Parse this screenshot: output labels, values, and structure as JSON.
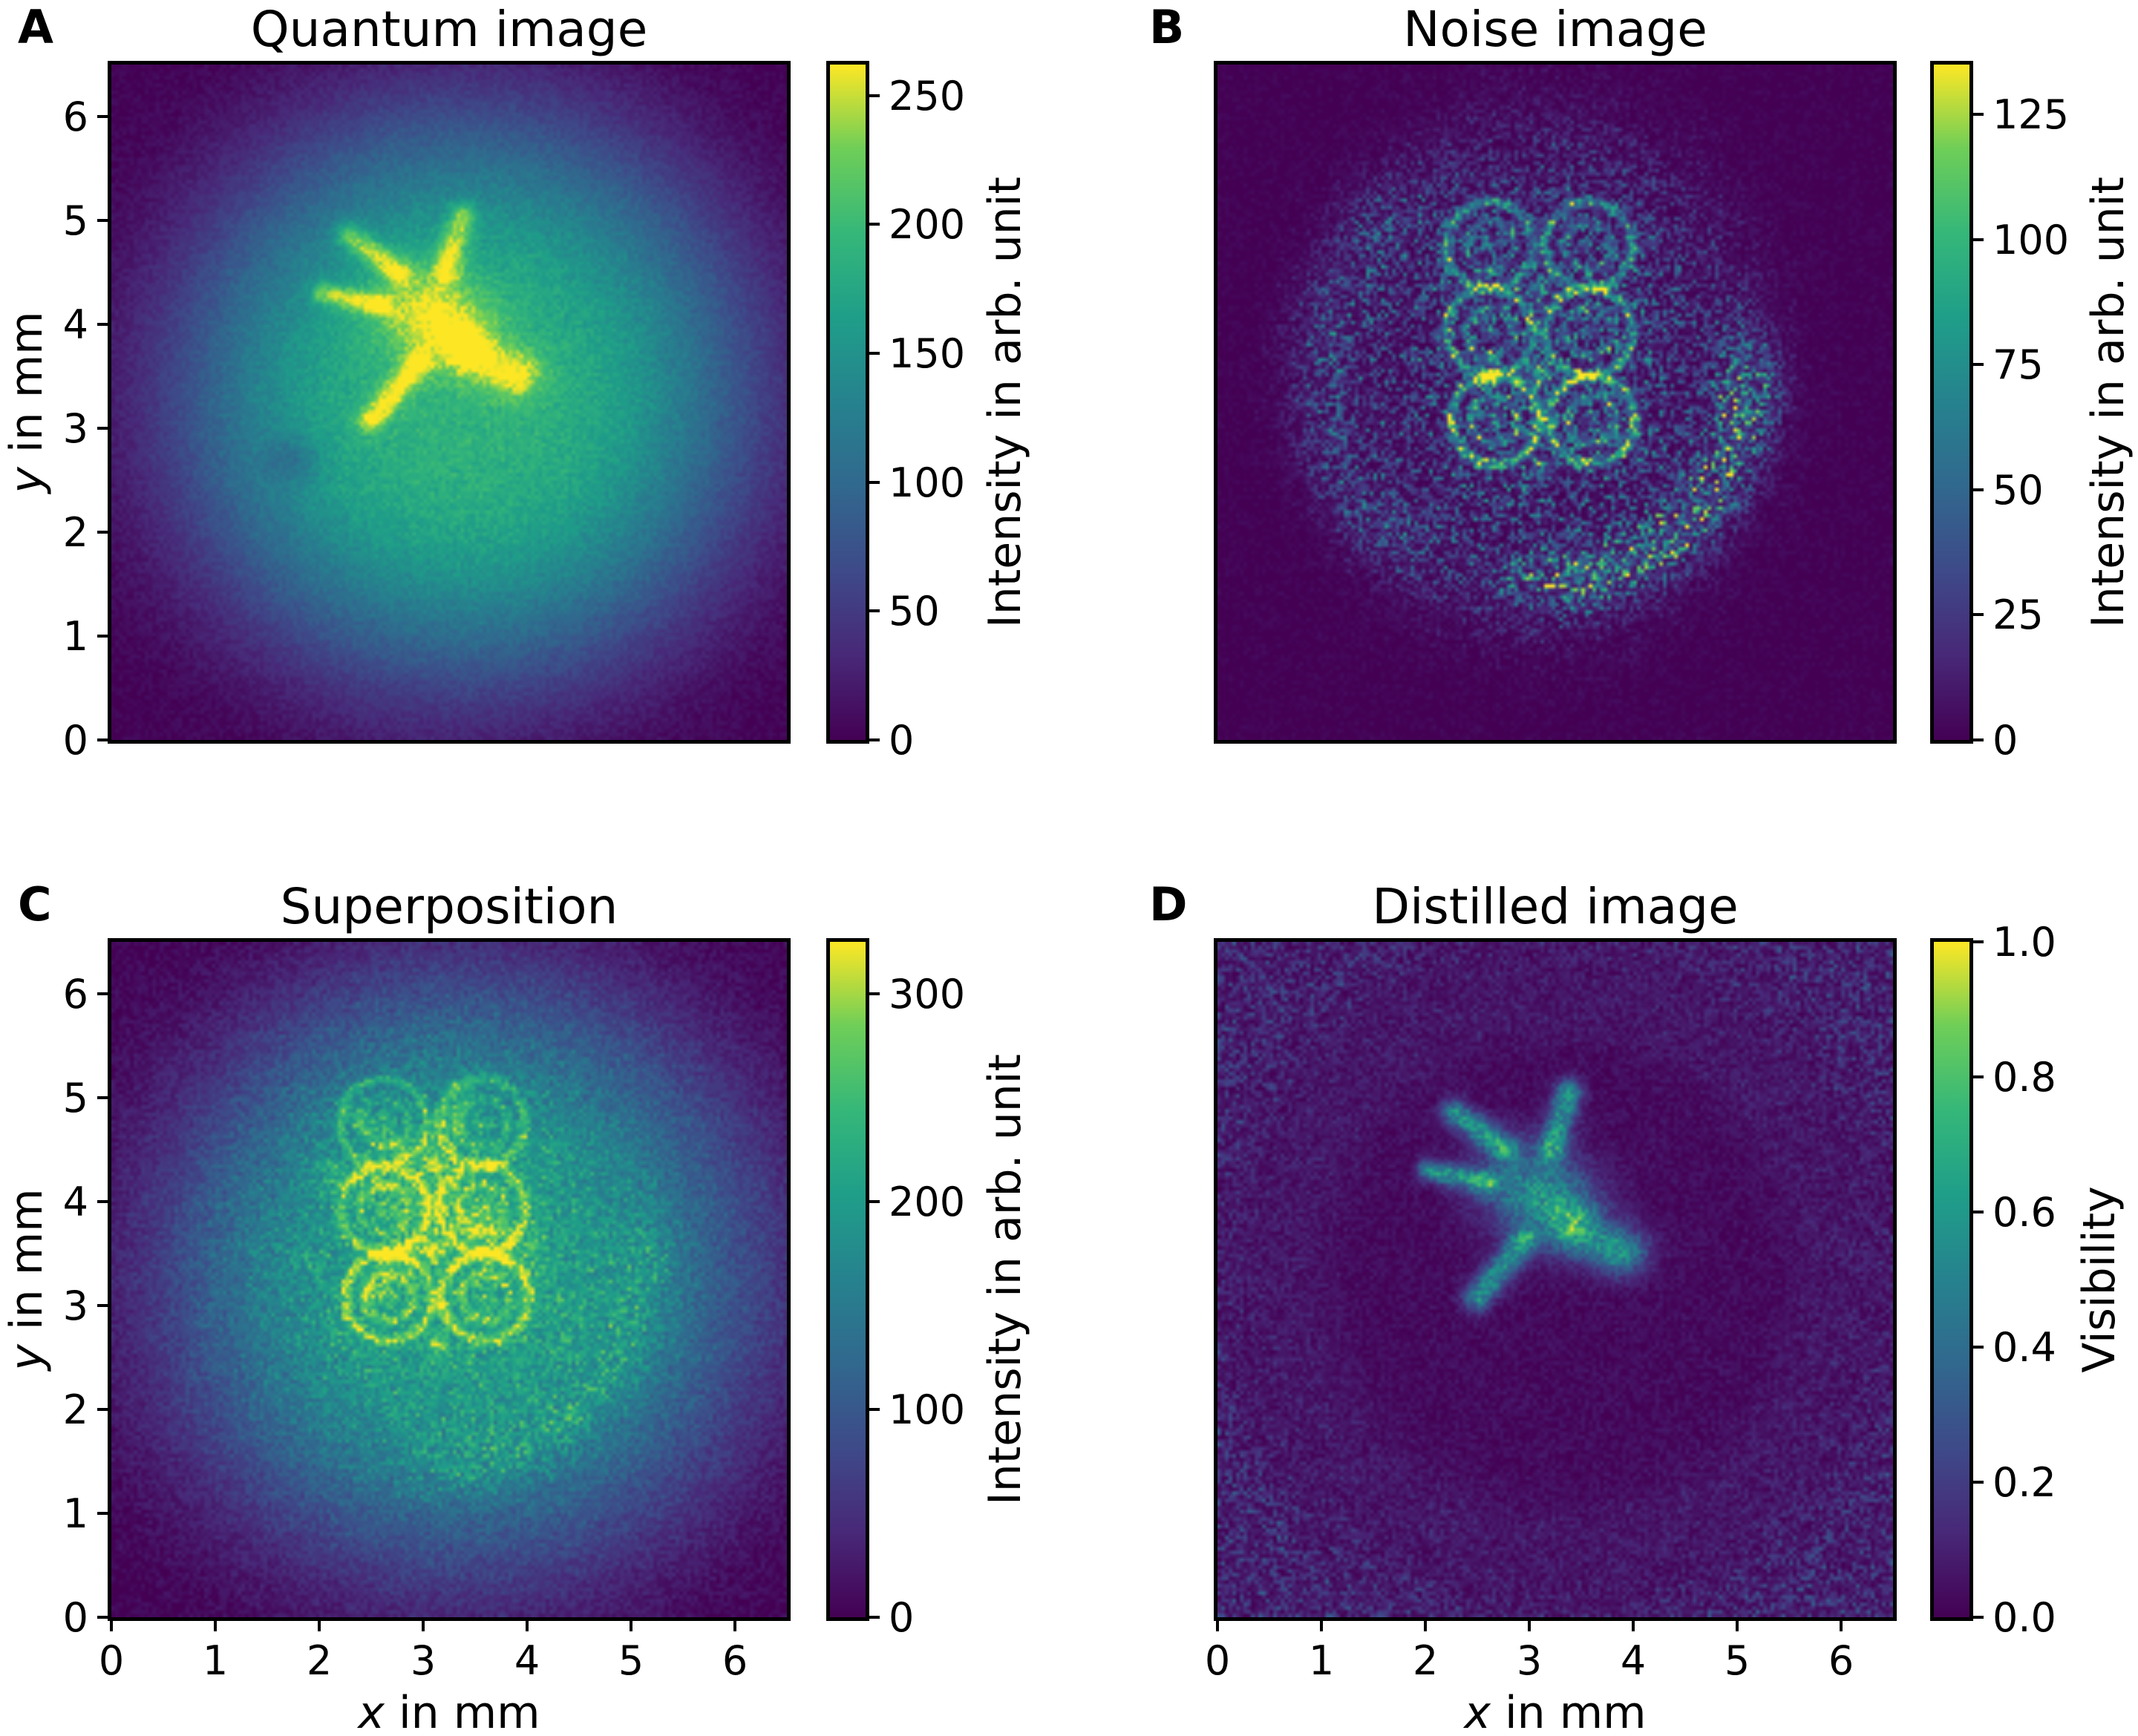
{
  "figure": {
    "background": "#ffffff",
    "colormap": "viridis",
    "colormap_hex": [
      "#440154",
      "#482878",
      "#3e4a89",
      "#31688e",
      "#26828e",
      "#1f9e89",
      "#35b779",
      "#6ece58",
      "#fde725"
    ]
  },
  "chart_data": {
    "type": "heatmap",
    "colormap": "viridis",
    "x_unit": "mm",
    "y_unit": "mm",
    "shapes": {
      "turtle": [
        {
          "type": "blob",
          "cx": 3.08,
          "cy": 4.08,
          "rx": 0.6,
          "ry": 0.46,
          "rot": -25
        },
        {
          "type": "blob",
          "cx": 3.45,
          "cy": 3.75,
          "rx": 0.3,
          "ry": 0.26,
          "rot": -35
        },
        {
          "type": "blob",
          "cx": 3.88,
          "cy": 3.52,
          "rx": 0.28,
          "ry": 0.24,
          "rot": 0
        },
        {
          "type": "capsule",
          "x1": 3.22,
          "y1": 4.52,
          "x2": 3.38,
          "y2": 5.05,
          "w": 0.14
        },
        {
          "type": "capsule",
          "x1": 2.78,
          "y1": 4.5,
          "x2": 2.28,
          "y2": 4.86,
          "w": 0.13
        },
        {
          "type": "capsule",
          "x1": 2.6,
          "y1": 4.18,
          "x2": 2.03,
          "y2": 4.3,
          "w": 0.11
        },
        {
          "type": "capsule",
          "x1": 2.95,
          "y1": 3.62,
          "x2": 2.5,
          "y2": 3.08,
          "w": 0.14
        }
      ],
      "rings": [
        {
          "type": "ringarray",
          "centers": [
            [
              2.62,
              4.76
            ],
            [
              3.57,
              4.76
            ],
            [
              2.62,
              3.93
            ],
            [
              3.57,
              3.93
            ],
            [
              2.67,
              3.08
            ],
            [
              3.6,
              3.08
            ]
          ],
          "rel": [
            0.72,
            0.72,
            0.85,
            0.85,
            1.0,
            1.0
          ],
          "r_outer": 0.42,
          "r_inner": 0.23,
          "w": 0.05
        },
        {
          "type": "blobs",
          "r": 0.1,
          "list": [
            [
              3.1,
              3.5,
              1.1
            ],
            [
              2.64,
              3.5,
              0.8
            ],
            [
              3.1,
              4.35,
              0.7
            ],
            [
              3.12,
              2.62,
              0.6
            ]
          ]
        }
      ]
    },
    "panels": [
      {
        "id": "A",
        "label": "A",
        "title": "Quantum image",
        "xlabel": null,
        "ylabel": {
          "var": "y",
          "rest": " in mm"
        },
        "xlim": [
          0,
          6.5
        ],
        "ylim": [
          0,
          6.5
        ],
        "x_tick_values": [],
        "x_tick_labels": [],
        "y_tick_values": [
          0,
          1,
          2,
          3,
          4,
          5,
          6
        ],
        "y_tick_labels": [
          "0",
          "1",
          "2",
          "3",
          "4",
          "5",
          "6"
        ],
        "colorbar": {
          "label": "Intensity in arb. unit",
          "vmin": 0,
          "vmax": 262,
          "tick_values": [
            0,
            50,
            100,
            150,
            200,
            250
          ],
          "tick_labels": [
            "0",
            "50",
            "100",
            "150",
            "200",
            "250"
          ]
        },
        "seed": 11,
        "features": [
          {
            "type": "disk",
            "cx": 3.4,
            "cy": 3.3,
            "r": 2.42,
            "s": 3.2,
            "amp": 0.72
          },
          {
            "type": "group",
            "ref": "turtle",
            "amp": 0.33
          },
          {
            "type": "blob",
            "cx": 1.75,
            "cy": 2.7,
            "rx": 0.28,
            "ry": 0.24,
            "rot": 0,
            "amp": -0.14
          },
          {
            "type": "noise",
            "amp": 0.035
          },
          {
            "type": "specklemult",
            "s": 0.12
          }
        ]
      },
      {
        "id": "B",
        "label": "B",
        "title": "Noise image",
        "xlabel": null,
        "ylabel": null,
        "xlim": [
          0,
          6.5
        ],
        "ylim": [
          0,
          6.5
        ],
        "x_tick_values": [],
        "x_tick_labels": [],
        "y_tick_values": [],
        "y_tick_labels": [],
        "colorbar": {
          "label": "Intensity in arb. unit",
          "vmin": 0,
          "vmax": 135,
          "tick_values": [
            0,
            25,
            50,
            75,
            100,
            125
          ],
          "tick_labels": [
            "0",
            "25",
            "50",
            "75",
            "100",
            "125"
          ]
        },
        "seed": 22,
        "features": [
          {
            "type": "speckle",
            "cx": 3.1,
            "cy": 3.55,
            "rx": 2.0,
            "ry": 2.35,
            "amp": 0.3
          },
          {
            "type": "arc",
            "cx": 3.1,
            "cy": 3.5,
            "r": 2.0,
            "a1": -80,
            "a2": -5,
            "w": 0.3,
            "amp": 0.4
          },
          {
            "type": "arc",
            "cx": 3.1,
            "cy": 3.5,
            "r": 2.1,
            "a1": 140,
            "a2": 225,
            "w": 0.35,
            "amp": 0.16
          },
          {
            "type": "group",
            "ref": "rings",
            "amp": 0.5
          },
          {
            "type": "noise",
            "amp": 0.03
          },
          {
            "type": "specklemult",
            "s": 0.85
          }
        ]
      },
      {
        "id": "C",
        "label": "C",
        "title": "Superposition",
        "xlabel": {
          "var": "x",
          "rest": " in mm"
        },
        "ylabel": {
          "var": "y",
          "rest": " in mm"
        },
        "xlim": [
          0,
          6.5
        ],
        "ylim": [
          0,
          6.5
        ],
        "x_tick_values": [
          0,
          1,
          2,
          3,
          4,
          5,
          6
        ],
        "x_tick_labels": [
          "0",
          "1",
          "2",
          "3",
          "4",
          "5",
          "6"
        ],
        "y_tick_values": [
          0,
          1,
          2,
          3,
          4,
          5,
          6
        ],
        "y_tick_labels": [
          "0",
          "1",
          "2",
          "3",
          "4",
          "5",
          "6"
        ],
        "colorbar": {
          "label": "Intensity in arb. unit",
          "vmin": 0,
          "vmax": 325,
          "tick_values": [
            0,
            100,
            200,
            300
          ],
          "tick_labels": [
            "0",
            "100",
            "200",
            "300"
          ]
        },
        "seed": 33,
        "features": [
          {
            "type": "disk",
            "cx": 3.4,
            "cy": 3.3,
            "r": 2.55,
            "s": 3.2,
            "amp": 0.6
          },
          {
            "type": "group",
            "ref": "turtle",
            "amp": 0.13
          },
          {
            "type": "group",
            "ref": "rings",
            "amp": 0.3
          },
          {
            "type": "speckle",
            "cx": 3.1,
            "cy": 3.55,
            "rx": 2.0,
            "ry": 2.35,
            "amp": 0.1
          },
          {
            "type": "arc",
            "cx": 3.1,
            "cy": 3.5,
            "r": 2.05,
            "a1": -80,
            "a2": -5,
            "w": 0.3,
            "amp": 0.12
          },
          {
            "type": "noise",
            "amp": 0.05
          },
          {
            "type": "specklemult",
            "s": 0.3
          }
        ]
      },
      {
        "id": "D",
        "label": "D",
        "title": "Distilled image",
        "xlabel": {
          "var": "x",
          "rest": " in mm"
        },
        "ylabel": null,
        "xlim": [
          0,
          6.5
        ],
        "ylim": [
          0,
          6.5
        ],
        "x_tick_values": [
          0,
          1,
          2,
          3,
          4,
          5,
          6
        ],
        "x_tick_labels": [
          "0",
          "1",
          "2",
          "3",
          "4",
          "5",
          "6"
        ],
        "y_tick_values": [],
        "y_tick_labels": [],
        "colorbar": {
          "label": "Visibility",
          "vmin": 0.0,
          "vmax": 1.0,
          "tick_values": [
            0.0,
            0.2,
            0.4,
            0.6,
            0.8,
            1.0
          ],
          "tick_labels": [
            "0.0",
            "0.2",
            "0.4",
            "0.6",
            "0.8",
            "1.0"
          ]
        },
        "seed": 44,
        "features": [
          {
            "type": "flat",
            "amp": 0.03
          },
          {
            "type": "group",
            "ref": "turtle",
            "amp": 0.52
          },
          {
            "type": "ring",
            "cx": 3.3,
            "cy": 3.3,
            "r": 2.55,
            "w": 0.35,
            "amp": 0.055
          },
          {
            "type": "cornerglow",
            "cx": 3.3,
            "cy": 3.3,
            "r0": 2.6,
            "amp": 0.16
          },
          {
            "type": "noise",
            "amp": 0.045
          },
          {
            "type": "specklemult",
            "s": 0.5
          }
        ]
      }
    ]
  }
}
